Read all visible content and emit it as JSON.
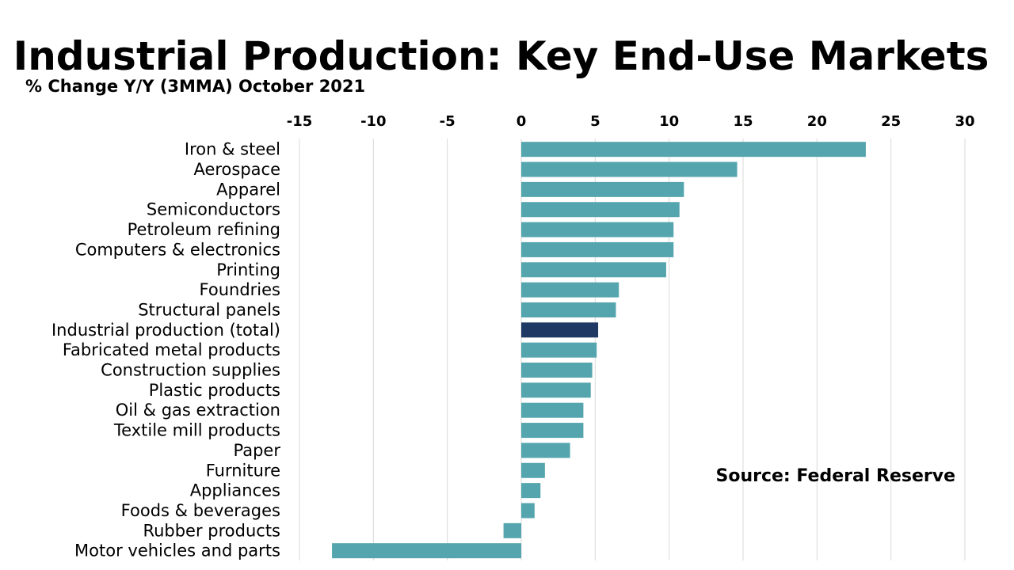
{
  "title": "Industrial Production: Key End-Use Markets",
  "subtitle": "% Change Y/Y (3MMA) October 2021",
  "source": "Source: Federal Reserve",
  "colors": {
    "bar": "#55a5ae",
    "highlight_bar": "#1f3864",
    "grid": "#d9d9d9"
  },
  "chart_data": {
    "type": "bar",
    "orientation": "horizontal",
    "title": "Industrial Production: Key End-Use Markets",
    "subtitle": "% Change Y/Y (3MMA) October 2021",
    "xlabel": "",
    "ylabel": "",
    "xlim": [
      -15,
      30
    ],
    "x_ticks": [
      -15,
      -10,
      -5,
      0,
      5,
      10,
      15,
      20,
      25,
      30
    ],
    "x_axis_position": "top",
    "grid": "vertical",
    "highlight_category": "Industrial production (total)",
    "categories": [
      "Iron & steel",
      "Aerospace",
      "Apparel",
      "Semiconductors",
      "Petroleum refining",
      "Computers & electronics",
      "Printing",
      "Foundries",
      "Structural panels",
      "Industrial production (total)",
      "Fabricated metal products",
      "Construction supplies",
      "Plastic products",
      "Oil & gas extraction",
      "Textile mill products",
      "Paper",
      "Furniture",
      "Appliances",
      "Foods & beverages",
      "Rubber products",
      "Motor vehicles and parts"
    ],
    "values": [
      23.3,
      14.6,
      11.0,
      10.7,
      10.3,
      10.3,
      9.8,
      6.6,
      6.4,
      5.2,
      5.1,
      4.8,
      4.7,
      4.2,
      4.2,
      3.3,
      1.6,
      1.3,
      0.9,
      -1.2,
      -12.8
    ]
  }
}
